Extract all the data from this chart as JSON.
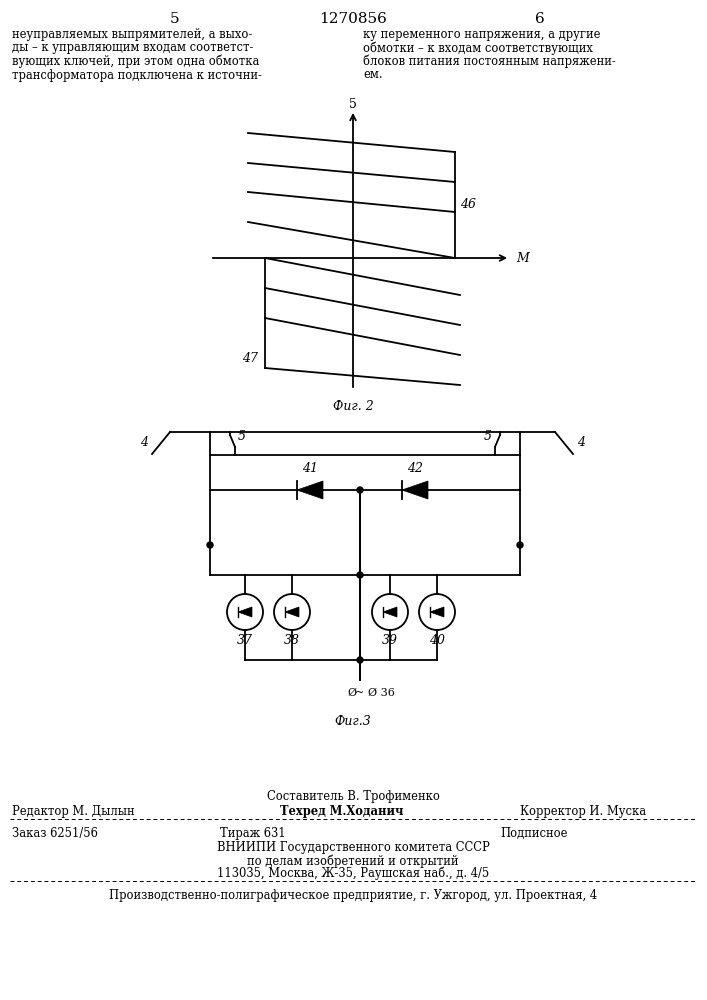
{
  "page_title": "1270856",
  "page_num_left": "5",
  "page_num_right": "6",
  "bg_color": "#ffffff",
  "text_left_lines": [
    "неуправляемых выпрямителей, а выхо-",
    "ды – к управляющим входам соответст-",
    "вующих ключей, при этом одна обмотка",
    "трансформатора подключена к источни-"
  ],
  "text_right_lines": [
    "ку переменного напряжения, а другие",
    "обмотки – к входам соответствующих",
    "блоков питания постоянным напряжени-",
    "ем."
  ],
  "fig2_caption": "Фиг. 2",
  "fig3_caption": "Фиг.3",
  "footer_sestavitel": "Составитель В. Трофименко",
  "footer_row2_left": "Редактор М. Дылын",
  "footer_row2_mid": "Техред М.Ходанич",
  "footer_row2_right": "Корректор И. Муска",
  "footer_zakaz": "Заказ 6251/56",
  "footer_tirazh": "Тираж 631",
  "footer_podpisnoe": "Подписное",
  "footer_vniip1": "ВНИИПИ Государственного комитета СССР",
  "footer_vniip2": "по делам изобретений и открытий",
  "footer_vniip3": "113035, Москва, Ж-35, Раушская наб., д. 4/5",
  "footer_bottom": "Производственно-полиграфическое предприятие, г. Ужгород, ул. Проектная, 4"
}
